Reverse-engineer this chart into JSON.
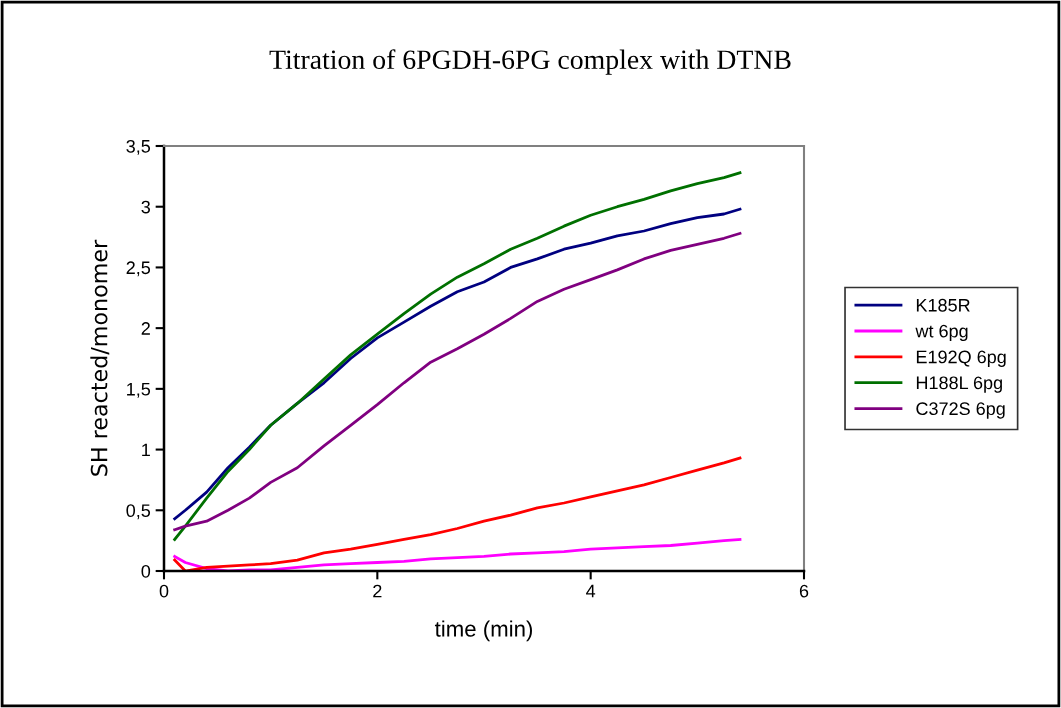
{
  "chart_data": {
    "type": "line",
    "title": "Titration of 6PGDH-6PG complex with DTNB",
    "xlabel": "time (min)",
    "ylabel": "SH reacted/monomer",
    "x": [
      0.1,
      0.2,
      0.4,
      0.6,
      0.8,
      1.0,
      1.25,
      1.5,
      1.75,
      2.0,
      2.25,
      2.5,
      2.75,
      3.0,
      3.25,
      3.5,
      3.75,
      4.0,
      4.25,
      4.5,
      4.75,
      5.0,
      5.25,
      5.4
    ],
    "series": [
      {
        "name": "K185R",
        "color": "#000080",
        "values": [
          0.43,
          0.5,
          0.65,
          0.85,
          1.02,
          1.2,
          1.38,
          1.55,
          1.75,
          1.92,
          2.05,
          2.18,
          2.3,
          2.38,
          2.5,
          2.57,
          2.65,
          2.7,
          2.76,
          2.8,
          2.86,
          2.91,
          2.94,
          2.98
        ]
      },
      {
        "name": "wt 6pg",
        "color": "#ff00ff",
        "values": [
          0.12,
          0.07,
          0.02,
          0.0,
          0.01,
          0.01,
          0.03,
          0.05,
          0.06,
          0.07,
          0.08,
          0.1,
          0.11,
          0.12,
          0.14,
          0.15,
          0.16,
          0.18,
          0.19,
          0.2,
          0.21,
          0.23,
          0.25,
          0.26
        ]
      },
      {
        "name": "E192Q 6pg",
        "color": "#ff0000",
        "values": [
          0.09,
          0.0,
          0.03,
          0.04,
          0.05,
          0.06,
          0.09,
          0.15,
          0.18,
          0.22,
          0.26,
          0.3,
          0.35,
          0.41,
          0.46,
          0.52,
          0.56,
          0.61,
          0.66,
          0.71,
          0.77,
          0.83,
          0.89,
          0.93
        ]
      },
      {
        "name": "H188L 6pg",
        "color": "#007000",
        "values": [
          0.26,
          0.37,
          0.6,
          0.82,
          1.0,
          1.2,
          1.38,
          1.58,
          1.78,
          1.95,
          2.12,
          2.28,
          2.42,
          2.53,
          2.65,
          2.74,
          2.84,
          2.93,
          3.0,
          3.06,
          3.13,
          3.19,
          3.24,
          3.28
        ]
      },
      {
        "name": "C372S 6pg",
        "color": "#800080",
        "values": [
          0.34,
          0.37,
          0.41,
          0.5,
          0.6,
          0.73,
          0.85,
          1.03,
          1.2,
          1.37,
          1.55,
          1.72,
          1.83,
          1.95,
          2.08,
          2.22,
          2.32,
          2.4,
          2.48,
          2.57,
          2.64,
          2.69,
          2.74,
          2.78
        ]
      }
    ],
    "xlim": [
      0,
      6
    ],
    "xticks": [
      0,
      2,
      4,
      6
    ],
    "ylim": [
      0,
      3.5
    ],
    "yticks": [
      0,
      {
        "value": 0.5,
        "label": "0,5"
      },
      1,
      {
        "value": 1.5,
        "label": "1,5"
      },
      2,
      {
        "value": 2.5,
        "label": "2,5"
      },
      3,
      {
        "value": 3.5,
        "label": "3,5"
      }
    ],
    "grid": false,
    "legend": "right",
    "marker": "none",
    "line_style": "solid"
  }
}
